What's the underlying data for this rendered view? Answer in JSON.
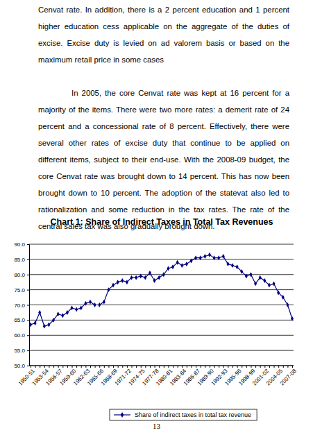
{
  "document": {
    "paragraphs": [
      "Cenvat rate. In addition, there is a 2 percent education and 1 percent higher education cess applicable on the aggregate of the duties of excise. Excise duty is levied on ad valorem basis or based on the maximum retail price in some cases",
      "In 2005, the core Cenvat rate was kept at 16 percent for a majority of the items. There were two more rates: a demerit rate of 24 percent and a concessional rate of 8 percent. Effectively, there were several other rates of excise duty that continue to be applied on different items, subject to their end-use. With the 2008-09 budget, the core Cenvat rate was brought down to 14 percent. This has now been brought down to 10 percent. The adoption of the statevat also led to rationalization and some reduction in the tax rates. The rate of the central sales tax was also gradually brought down."
    ],
    "page_number": "13"
  },
  "chart_data": {
    "type": "line",
    "title": "Chart 1: Share of Indirect Taxes in Total Tax Revenues",
    "categories": [
      "1950-51",
      null,
      null,
      "1953-54",
      null,
      null,
      "1956-57",
      null,
      null,
      "1959-60",
      null,
      null,
      "1962-63",
      null,
      null,
      "1965-66",
      null,
      null,
      "1968-69",
      null,
      null,
      "1971-72",
      null,
      null,
      "1974-75",
      null,
      null,
      "1977-78",
      null,
      null,
      "1980-81",
      null,
      null,
      "1983-84",
      null,
      null,
      "1986-87",
      null,
      null,
      "1989-90",
      null,
      null,
      "1992-93",
      null,
      null,
      "1995-96",
      null,
      null,
      "1998-99",
      null,
      null,
      "2001-02",
      null,
      null,
      "2004-05",
      null,
      null,
      "2007-08"
    ],
    "series": [
      {
        "name": "Share of indirect taxes in total tax revenue",
        "color": "#000080",
        "marker": "diamond",
        "values": [
          63.5,
          64,
          67.5,
          63,
          63.5,
          65,
          67,
          66.5,
          67.5,
          69,
          68.5,
          69,
          70.5,
          71,
          70,
          70,
          71,
          75,
          76.5,
          77.5,
          78,
          77.5,
          79,
          79,
          79.5,
          79,
          80.5,
          78,
          79,
          80,
          82,
          82.5,
          84,
          83,
          83.5,
          84.5,
          85.5,
          85.5,
          86,
          86.5,
          85.5,
          85.5,
          86,
          83.5,
          83,
          82.5,
          81,
          79.5,
          80,
          77,
          79,
          78,
          76.5,
          77,
          74,
          72.5,
          70,
          65.5
        ]
      }
    ],
    "ylim": [
      50,
      90
    ],
    "yticks": [
      {
        "value": 50,
        "label": "50.0"
      },
      {
        "value": 55,
        "label": "55.0"
      },
      {
        "value": 60,
        "label": "60.0"
      },
      {
        "value": 65,
        "label": "65.0"
      },
      {
        "value": 70,
        "label": "70.0"
      },
      {
        "value": 75,
        "label": "75.0"
      },
      {
        "value": 80,
        "label": "80.0"
      },
      {
        "value": 85,
        "label": "85.0"
      },
      {
        "value": 90,
        "label": "90.0"
      }
    ],
    "grid": true,
    "legend": "bottom"
  }
}
